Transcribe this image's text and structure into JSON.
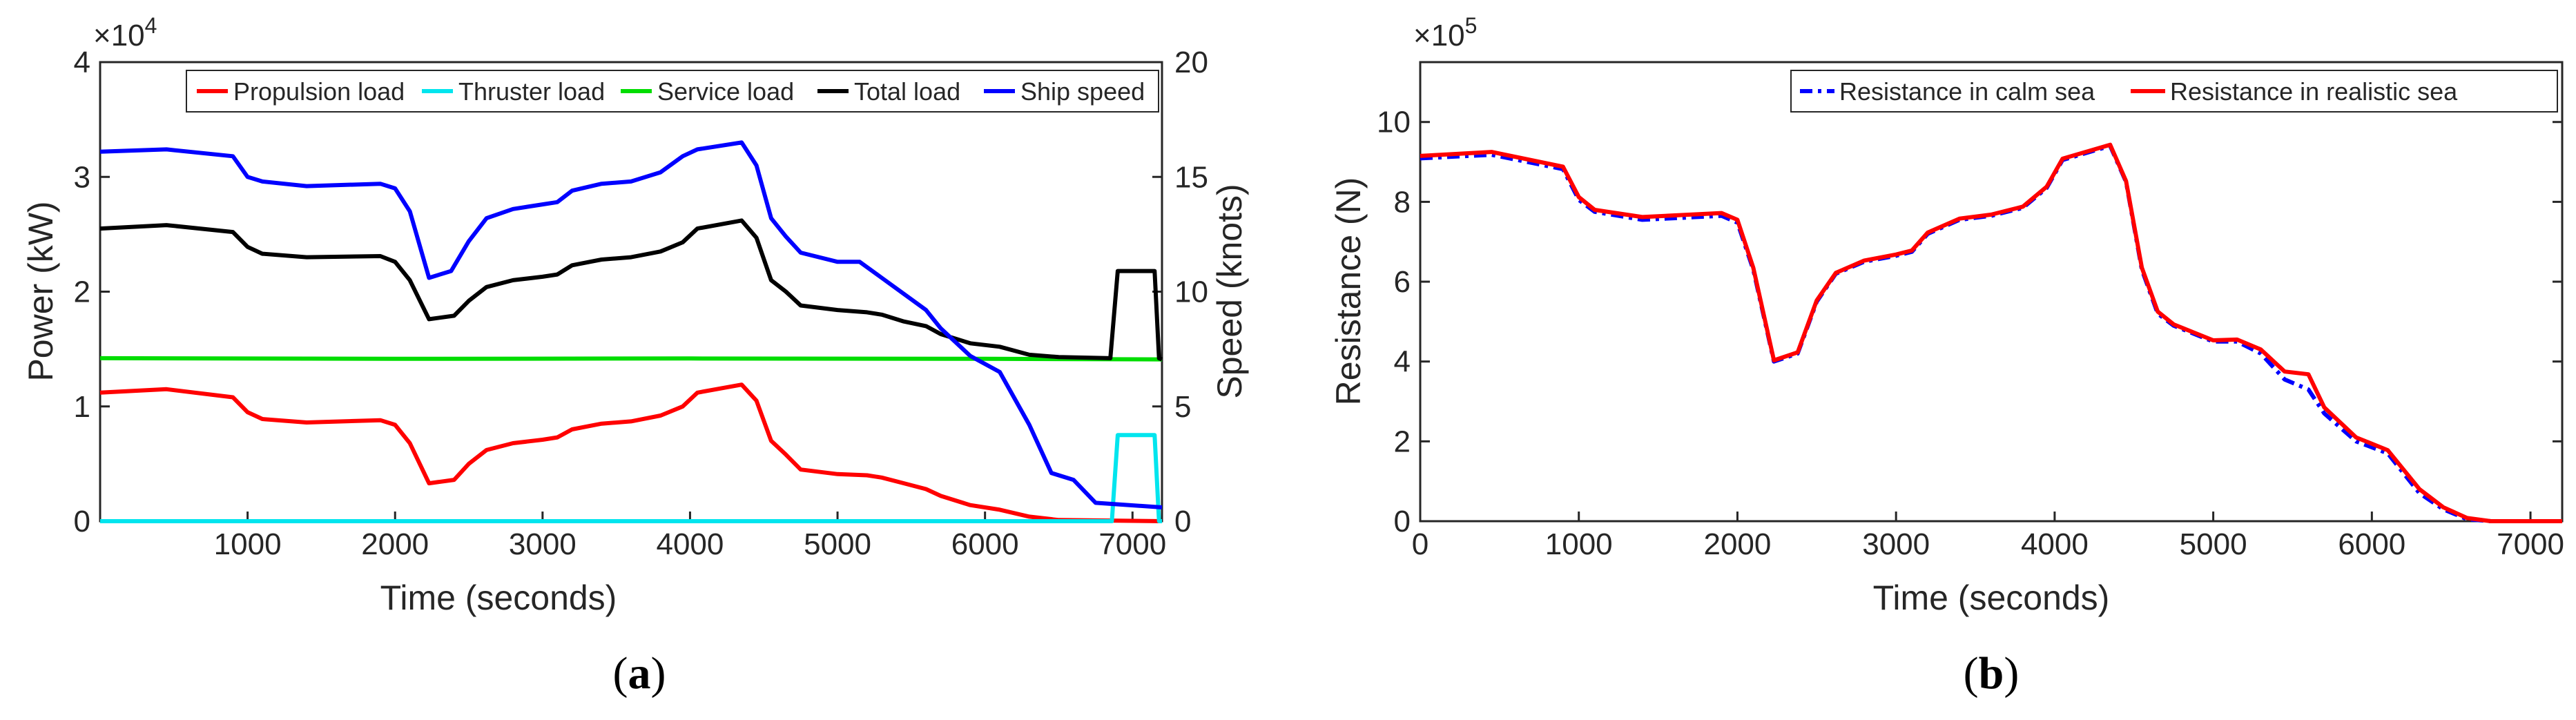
{
  "chart_data": [
    {
      "panel_label": "(a)",
      "type": "line",
      "xlabel": "Time (seconds)",
      "ylabel_left": "Power (kW)",
      "ylabel_right": "Speed (knots)",
      "exponent_label": "×10",
      "exponent_power": "4",
      "xlim": [
        0,
        7200
      ],
      "ylim_left": [
        0,
        40000
      ],
      "ylim_right": [
        0,
        20
      ],
      "x_ticks": [
        1000,
        2000,
        3000,
        4000,
        5000,
        6000,
        7000
      ],
      "y_ticks_left": [
        0,
        1,
        2,
        3,
        4
      ],
      "y_ticks_right": [
        0,
        5,
        10,
        15,
        20
      ],
      "legend_location": "top",
      "series": [
        {
          "name": "Propulsion load",
          "color": "#ff0000",
          "axis": "left",
          "points": [
            [
              0,
              11200
            ],
            [
              450,
              11500
            ],
            [
              900,
              10800
            ],
            [
              1000,
              9500
            ],
            [
              1100,
              8900
            ],
            [
              1400,
              8600
            ],
            [
              1900,
              8800
            ],
            [
              2000,
              8400
            ],
            [
              2100,
              6800
            ],
            [
              2230,
              3300
            ],
            [
              2400,
              3600
            ],
            [
              2500,
              5000
            ],
            [
              2620,
              6200
            ],
            [
              2800,
              6800
            ],
            [
              3000,
              7100
            ],
            [
              3100,
              7300
            ],
            [
              3200,
              8000
            ],
            [
              3400,
              8500
            ],
            [
              3600,
              8700
            ],
            [
              3800,
              9200
            ],
            [
              3950,
              10000
            ],
            [
              4050,
              11200
            ],
            [
              4350,
              11900
            ],
            [
              4450,
              10500
            ],
            [
              4550,
              7000
            ],
            [
              4650,
              5800
            ],
            [
              4750,
              4500
            ],
            [
              5000,
              4100
            ],
            [
              5200,
              4000
            ],
            [
              5300,
              3800
            ],
            [
              5450,
              3300
            ],
            [
              5600,
              2800
            ],
            [
              5700,
              2200
            ],
            [
              5900,
              1400
            ],
            [
              6100,
              1000
            ],
            [
              6300,
              400
            ],
            [
              6500,
              100
            ],
            [
              6900,
              50
            ],
            [
              7200,
              0
            ]
          ]
        },
        {
          "name": "Thruster load",
          "color": "#00e5ee",
          "axis": "left",
          "points": [
            [
              0,
              0
            ],
            [
              6860,
              0
            ],
            [
              6900,
              7500
            ],
            [
              7150,
              7500
            ],
            [
              7180,
              0
            ],
            [
              7200,
              0
            ]
          ]
        },
        {
          "name": "Service load",
          "color": "#00dd00",
          "axis": "left",
          "points": [
            [
              0,
              14200
            ],
            [
              2000,
              14150
            ],
            [
              4000,
              14180
            ],
            [
              6000,
              14150
            ],
            [
              7200,
              14100
            ]
          ]
        },
        {
          "name": "Total load",
          "color": "#000000",
          "axis": "left",
          "points": [
            [
              0,
              25500
            ],
            [
              450,
              25800
            ],
            [
              900,
              25200
            ],
            [
              1000,
              23900
            ],
            [
              1100,
              23300
            ],
            [
              1400,
              23000
            ],
            [
              1900,
              23100
            ],
            [
              2000,
              22600
            ],
            [
              2100,
              21000
            ],
            [
              2230,
              17600
            ],
            [
              2400,
              17900
            ],
            [
              2500,
              19200
            ],
            [
              2620,
              20400
            ],
            [
              2800,
              21000
            ],
            [
              3000,
              21300
            ],
            [
              3100,
              21500
            ],
            [
              3200,
              22300
            ],
            [
              3400,
              22800
            ],
            [
              3600,
              23000
            ],
            [
              3800,
              23500
            ],
            [
              3950,
              24300
            ],
            [
              4050,
              25500
            ],
            [
              4350,
              26200
            ],
            [
              4450,
              24700
            ],
            [
              4550,
              21000
            ],
            [
              4650,
              20000
            ],
            [
              4750,
              18800
            ],
            [
              5000,
              18400
            ],
            [
              5200,
              18200
            ],
            [
              5300,
              18000
            ],
            [
              5450,
              17400
            ],
            [
              5600,
              17000
            ],
            [
              5700,
              16300
            ],
            [
              5900,
              15500
            ],
            [
              6100,
              15200
            ],
            [
              6300,
              14500
            ],
            [
              6500,
              14300
            ],
            [
              6850,
              14200
            ],
            [
              6900,
              21800
            ],
            [
              7150,
              21800
            ],
            [
              7180,
              14200
            ],
            [
              7200,
              14100
            ]
          ]
        },
        {
          "name": "Ship speed",
          "color": "#0000ff",
          "axis": "right",
          "points": [
            [
              0,
              16.1
            ],
            [
              450,
              16.2
            ],
            [
              900,
              15.9
            ],
            [
              1000,
              15.0
            ],
            [
              1100,
              14.8
            ],
            [
              1400,
              14.6
            ],
            [
              1900,
              14.7
            ],
            [
              2000,
              14.5
            ],
            [
              2100,
              13.5
            ],
            [
              2230,
              10.6
            ],
            [
              2380,
              10.9
            ],
            [
              2500,
              12.2
            ],
            [
              2620,
              13.2
            ],
            [
              2800,
              13.6
            ],
            [
              3000,
              13.8
            ],
            [
              3100,
              13.9
            ],
            [
              3200,
              14.4
            ],
            [
              3400,
              14.7
            ],
            [
              3600,
              14.8
            ],
            [
              3800,
              15.2
            ],
            [
              3950,
              15.9
            ],
            [
              4050,
              16.2
            ],
            [
              4350,
              16.5
            ],
            [
              4450,
              15.5
            ],
            [
              4550,
              13.2
            ],
            [
              4650,
              12.4
            ],
            [
              4750,
              11.7
            ],
            [
              5000,
              11.3
            ],
            [
              5150,
              11.3
            ],
            [
              5300,
              10.6
            ],
            [
              5450,
              9.9
            ],
            [
              5600,
              9.2
            ],
            [
              5700,
              8.4
            ],
            [
              5900,
              7.2
            ],
            [
              6100,
              6.5
            ],
            [
              6300,
              4.2
            ],
            [
              6450,
              2.1
            ],
            [
              6600,
              1.8
            ],
            [
              6750,
              0.8
            ],
            [
              7200,
              0.6
            ]
          ]
        }
      ]
    },
    {
      "panel_label": "(b)",
      "type": "line",
      "xlabel": "Time (seconds)",
      "ylabel": "Resistance (N)",
      "exponent_label": "×10",
      "exponent_power": "5",
      "xlim": [
        0,
        7200
      ],
      "ylim": [
        0,
        1150000
      ],
      "x_ticks": [
        0,
        1000,
        2000,
        3000,
        4000,
        5000,
        6000,
        7000
      ],
      "y_ticks": [
        0,
        2,
        4,
        6,
        8,
        10
      ],
      "legend_location": "top-right",
      "series": [
        {
          "name": "Resistance in calm sea",
          "color": "#0000ff",
          "style": "dash-dot",
          "axis": "left",
          "points": [
            [
              0,
              909000
            ],
            [
              450,
              918000
            ],
            [
              900,
              882000
            ],
            [
              1000,
              805000
            ],
            [
              1100,
              775000
            ],
            [
              1400,
              755000
            ],
            [
              1900,
              765000
            ],
            [
              2000,
              748000
            ],
            [
              2100,
              630000
            ],
            [
              2230,
              400000
            ],
            [
              2380,
              420000
            ],
            [
              2500,
              550000
            ],
            [
              2620,
              620000
            ],
            [
              2800,
              650000
            ],
            [
              3000,
              665000
            ],
            [
              3100,
              675000
            ],
            [
              3200,
              720000
            ],
            [
              3400,
              755000
            ],
            [
              3600,
              765000
            ],
            [
              3800,
              785000
            ],
            [
              3950,
              835000
            ],
            [
              4050,
              905000
            ],
            [
              4350,
              940000
            ],
            [
              4450,
              850000
            ],
            [
              4550,
              630000
            ],
            [
              4650,
              520000
            ],
            [
              4750,
              490000
            ],
            [
              5000,
              450000
            ],
            [
              5150,
              450000
            ],
            [
              5300,
              420000
            ],
            [
              5450,
              355000
            ],
            [
              5600,
              330000
            ],
            [
              5700,
              270000
            ],
            [
              5900,
              200000
            ],
            [
              6100,
              170000
            ],
            [
              6300,
              70000
            ],
            [
              6450,
              30000
            ],
            [
              6600,
              5000
            ],
            [
              6750,
              0
            ],
            [
              7200,
              0
            ]
          ]
        },
        {
          "name": "Resistance in realistic sea",
          "color": "#ff0000",
          "style": "solid",
          "axis": "left",
          "points": [
            [
              0,
              915000
            ],
            [
              450,
              925000
            ],
            [
              900,
              888000
            ],
            [
              1000,
              812000
            ],
            [
              1100,
              780000
            ],
            [
              1400,
              762000
            ],
            [
              1900,
              772000
            ],
            [
              2000,
              755000
            ],
            [
              2100,
              635000
            ],
            [
              2230,
              403000
            ],
            [
              2380,
              423000
            ],
            [
              2500,
              553000
            ],
            [
              2620,
              622000
            ],
            [
              2800,
              653000
            ],
            [
              3000,
              668000
            ],
            [
              3100,
              678000
            ],
            [
              3200,
              723000
            ],
            [
              3400,
              758000
            ],
            [
              3600,
              768000
            ],
            [
              3800,
              788000
            ],
            [
              3950,
              838000
            ],
            [
              4050,
              908000
            ],
            [
              4350,
              943000
            ],
            [
              4450,
              852000
            ],
            [
              4550,
              635000
            ],
            [
              4650,
              525000
            ],
            [
              4750,
              493000
            ],
            [
              5000,
              453000
            ],
            [
              5150,
              455000
            ],
            [
              5300,
              430000
            ],
            [
              5450,
              375000
            ],
            [
              5600,
              368000
            ],
            [
              5700,
              285000
            ],
            [
              5900,
              210000
            ],
            [
              6100,
              178000
            ],
            [
              6300,
              80000
            ],
            [
              6450,
              35000
            ],
            [
              6600,
              8000
            ],
            [
              6750,
              0
            ],
            [
              7200,
              0
            ]
          ]
        }
      ]
    }
  ]
}
